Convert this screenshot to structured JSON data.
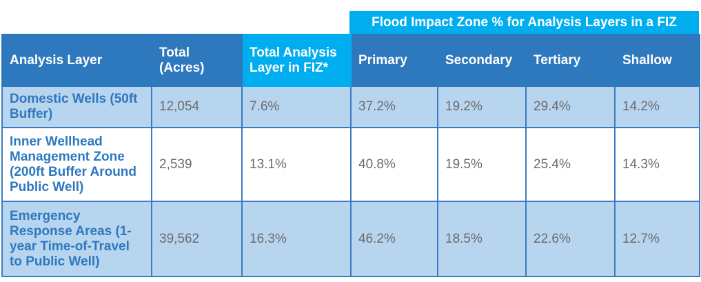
{
  "group_header": "Flood Impact Zone % for Analysis Layers in a FIZ",
  "headers": [
    "Analysis Layer",
    "Total (Acres)",
    "Total Analysis Layer in FIZ*",
    "Primary",
    "Secondary",
    "Tertiary",
    "Shallow"
  ],
  "rows": [
    [
      "Domestic Wells (50ft Buffer)",
      "12,054",
      "7.6%",
      "37.2%",
      "19.2%",
      "29.4%",
      "14.2%"
    ],
    [
      "Inner Wellhead Management Zone (200ft Buffer Around Public Well)",
      "2,539",
      "13.1%",
      "40.8%",
      "19.5%",
      "25.4%",
      "14.3%"
    ],
    [
      "Emergency Response Areas (1-year Time-of-Travel to Public Well)",
      "39,562",
      "16.3%",
      "46.2%",
      "18.5%",
      "22.6%",
      "12.7%"
    ]
  ],
  "colors": {
    "header": "#2e78be",
    "highlight": "#00aeef",
    "row_alt": "#b7d5ef"
  }
}
